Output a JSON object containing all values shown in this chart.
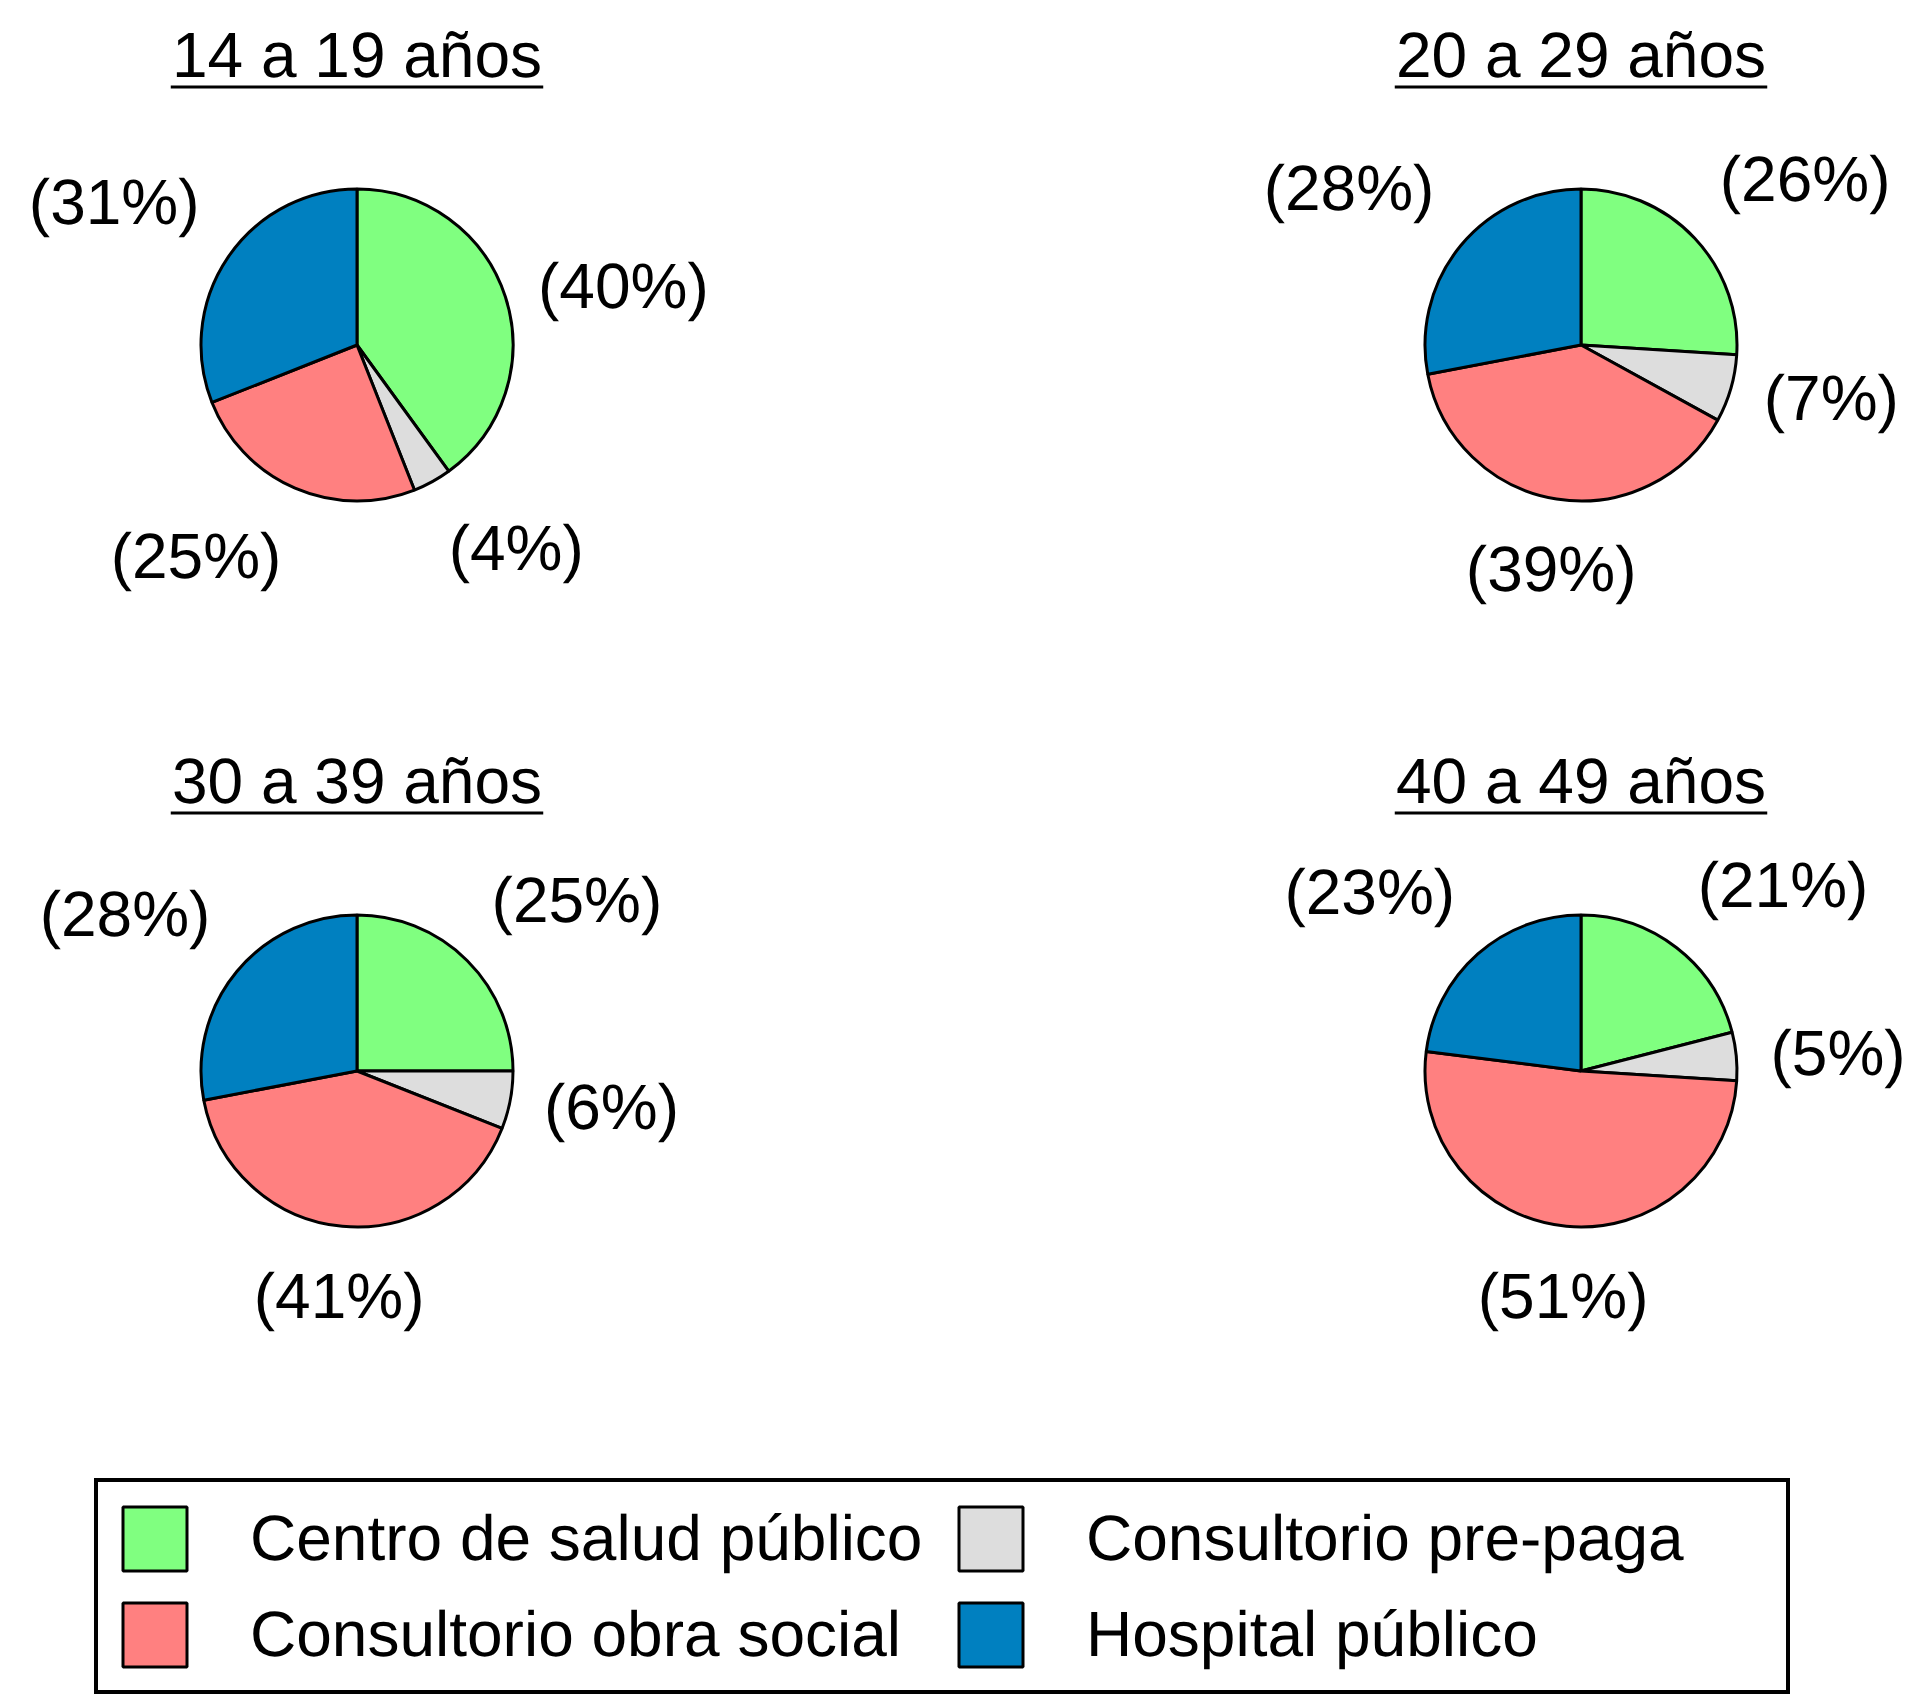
{
  "chart_data": {
    "type": "pie",
    "categories": [
      "Centro de salud público",
      "Consultorio pre-paga",
      "Consultorio obra social",
      "Hospital público"
    ],
    "colors": [
      "#80ff80",
      "#dddddd",
      "#ff8080",
      "#0080c0"
    ],
    "legend": "bottom",
    "series": [
      {
        "name": "14 a 19 años",
        "values": [
          40,
          4,
          25,
          31
        ],
        "value_labels": [
          "(40%)",
          "(4%)",
          "(25%)",
          "(31%)"
        ]
      },
      {
        "name": "20 a 29 años",
        "values": [
          26,
          7,
          39,
          28
        ],
        "value_labels": [
          "(26%)",
          "(7%)",
          "(39%)",
          "(28%)"
        ]
      },
      {
        "name": "30 a 39 años",
        "values": [
          25,
          6,
          41,
          28
        ],
        "value_labels": [
          "(25%)",
          "(6%)",
          "(41%)",
          "(28%)"
        ]
      },
      {
        "name": "40 a 49 años",
        "values": [
          21,
          5,
          51,
          23
        ],
        "value_labels": [
          "(21%)",
          "(5%)",
          "(51%)",
          "(23%)"
        ]
      }
    ]
  }
}
